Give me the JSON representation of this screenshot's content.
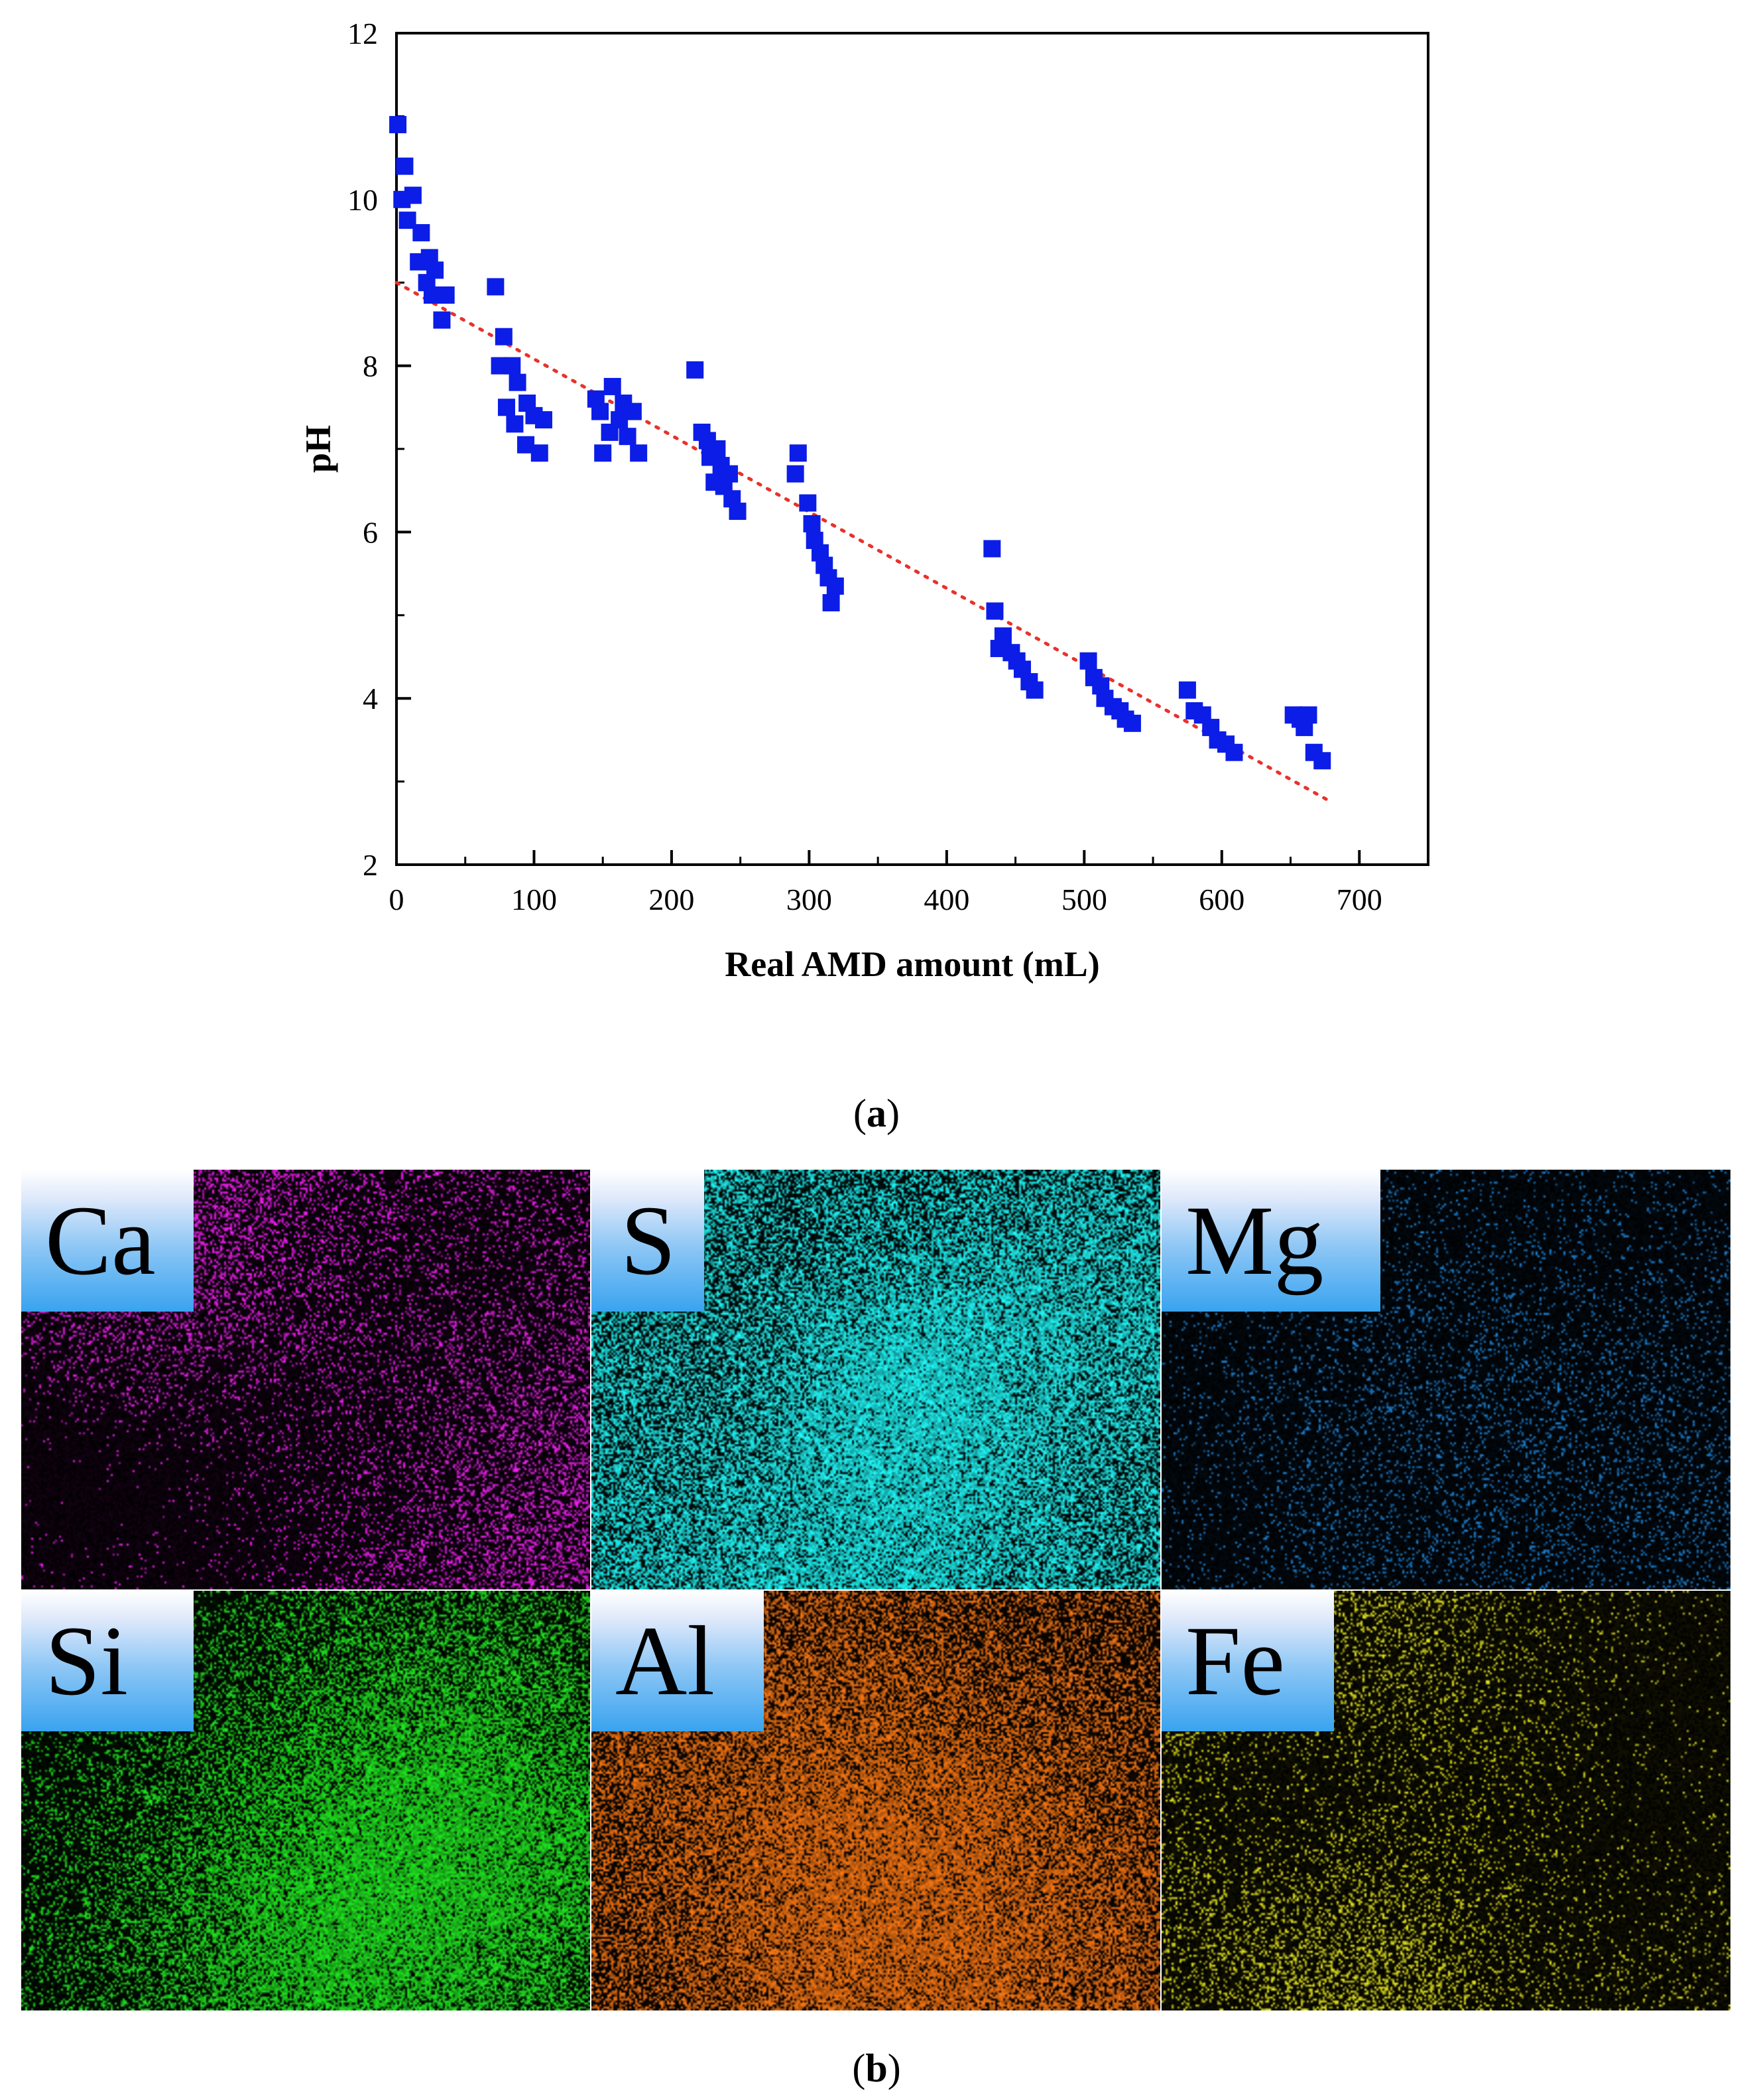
{
  "chart_data": {
    "type": "scatter",
    "title": "",
    "xlabel": "Real AMD amount (mL)",
    "ylabel": "pH",
    "xlim": [
      0,
      750
    ],
    "ylim": [
      2,
      12
    ],
    "xticks": [
      0,
      100,
      200,
      300,
      400,
      500,
      600,
      700
    ],
    "yticks": [
      2,
      4,
      6,
      8,
      10,
      12
    ],
    "grid": false,
    "legend": "none",
    "marker_color": "#0b1de6",
    "marker_shape": "square",
    "trendline": {
      "style": "dotted",
      "color": "#e8322b",
      "x": [
        0,
        680
      ],
      "y": [
        9.0,
        2.75
      ]
    },
    "points": [
      [
        1,
        10.9
      ],
      [
        6,
        10.4
      ],
      [
        4,
        10.0
      ],
      [
        12,
        10.05
      ],
      [
        8,
        9.75
      ],
      [
        18,
        9.6
      ],
      [
        16,
        9.25
      ],
      [
        24,
        9.3
      ],
      [
        22,
        9.0
      ],
      [
        28,
        9.15
      ],
      [
        26,
        8.85
      ],
      [
        36,
        8.85
      ],
      [
        33,
        8.55
      ],
      [
        72,
        8.95
      ],
      [
        78,
        8.35
      ],
      [
        75,
        8.0
      ],
      [
        84,
        8.0
      ],
      [
        88,
        7.8
      ],
      [
        80,
        7.5
      ],
      [
        86,
        7.3
      ],
      [
        95,
        7.55
      ],
      [
        100,
        7.4
      ],
      [
        107,
        7.35
      ],
      [
        94,
        7.05
      ],
      [
        104,
        6.95
      ],
      [
        145,
        7.6
      ],
      [
        157,
        7.75
      ],
      [
        148,
        7.45
      ],
      [
        165,
        7.55
      ],
      [
        172,
        7.45
      ],
      [
        155,
        7.2
      ],
      [
        162,
        7.35
      ],
      [
        150,
        6.95
      ],
      [
        168,
        7.15
      ],
      [
        176,
        6.95
      ],
      [
        217,
        7.95
      ],
      [
        222,
        7.2
      ],
      [
        226,
        7.1
      ],
      [
        228,
        6.9
      ],
      [
        233,
        7.0
      ],
      [
        236,
        6.8
      ],
      [
        231,
        6.6
      ],
      [
        242,
        6.7
      ],
      [
        238,
        6.55
      ],
      [
        244,
        6.4
      ],
      [
        248,
        6.25
      ],
      [
        292,
        6.95
      ],
      [
        290,
        6.7
      ],
      [
        299,
        6.35
      ],
      [
        302,
        6.1
      ],
      [
        304,
        5.9
      ],
      [
        308,
        5.75
      ],
      [
        311,
        5.6
      ],
      [
        314,
        5.45
      ],
      [
        319,
        5.35
      ],
      [
        316,
        5.15
      ],
      [
        433,
        5.8
      ],
      [
        435,
        5.05
      ],
      [
        441,
        4.75
      ],
      [
        438,
        4.6
      ],
      [
        447,
        4.55
      ],
      [
        451,
        4.45
      ],
      [
        455,
        4.35
      ],
      [
        460,
        4.2
      ],
      [
        464,
        4.1
      ],
      [
        503,
        4.45
      ],
      [
        507,
        4.25
      ],
      [
        512,
        4.15
      ],
      [
        515,
        4.0
      ],
      [
        521,
        3.9
      ],
      [
        526,
        3.85
      ],
      [
        530,
        3.75
      ],
      [
        535,
        3.7
      ],
      [
        575,
        4.1
      ],
      [
        580,
        3.85
      ],
      [
        586,
        3.8
      ],
      [
        592,
        3.65
      ],
      [
        597,
        3.5
      ],
      [
        603,
        3.45
      ],
      [
        609,
        3.35
      ],
      [
        652,
        3.8
      ],
      [
        657,
        3.75
      ],
      [
        663,
        3.8
      ],
      [
        660,
        3.65
      ],
      [
        667,
        3.35
      ],
      [
        673,
        3.25
      ]
    ]
  },
  "captions": {
    "a": "a",
    "b": "b"
  },
  "maps": [
    {
      "label": "Ca",
      "color": "#ff22ff",
      "density": 0.55
    },
    {
      "label": "S",
      "color": "#22ffff",
      "density": 0.55
    },
    {
      "label": "Mg",
      "color": "#1e8ce6",
      "density": 0.06
    },
    {
      "label": "Si",
      "color": "#22ee22",
      "density": 0.3
    },
    {
      "label": "Al",
      "color": "#ff7a14",
      "density": 0.35
    },
    {
      "label": "Fe",
      "color": "#f2f21e",
      "density": 0.4
    }
  ]
}
